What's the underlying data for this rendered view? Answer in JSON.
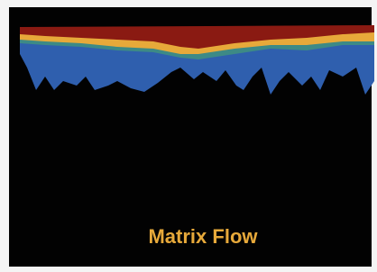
{
  "caption": {
    "text": "Matrix Flow"
  }
}
